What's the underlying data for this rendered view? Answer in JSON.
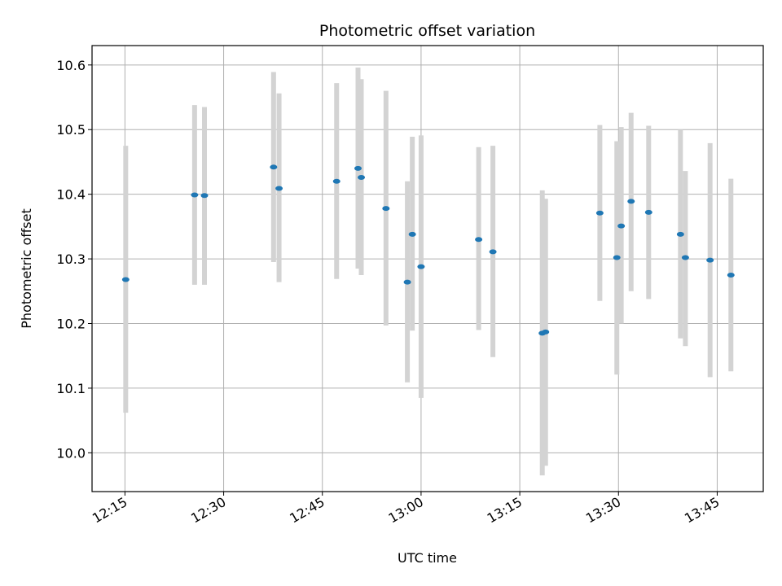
{
  "chart_data": {
    "type": "scatter",
    "title": "Photometric offset variation",
    "xlabel": "UTC time",
    "ylabel": "Photometric offset",
    "x_unit": "minutes",
    "x_range": [
      "12:10",
      "13:52"
    ],
    "ylim": [
      9.94,
      10.63
    ],
    "x_ticks": [
      "12:15",
      "12:30",
      "12:45",
      "13:00",
      "13:15",
      "13:30",
      "13:45"
    ],
    "y_ticks": [
      "10.0",
      "10.1",
      "10.2",
      "10.3",
      "10.4",
      "10.5",
      "10.6"
    ],
    "grid": true,
    "colors": {
      "point": "#1f77b4",
      "errorbar": "#d3d3d3",
      "grid": "#b0b0b0"
    },
    "points": [
      {
        "t": "12:15:07",
        "y": 10.268,
        "lo": 10.062,
        "hi": 10.475
      },
      {
        "t": "12:25:35",
        "y": 10.399,
        "lo": 10.26,
        "hi": 10.538
      },
      {
        "t": "12:27:05",
        "y": 10.398,
        "lo": 10.26,
        "hi": 10.535
      },
      {
        "t": "12:37:35",
        "y": 10.442,
        "lo": 10.295,
        "hi": 10.589
      },
      {
        "t": "12:38:25",
        "y": 10.409,
        "lo": 10.264,
        "hi": 10.556
      },
      {
        "t": "12:47:10",
        "y": 10.42,
        "lo": 10.269,
        "hi": 10.572
      },
      {
        "t": "12:50:25",
        "y": 10.44,
        "lo": 10.285,
        "hi": 10.596
      },
      {
        "t": "12:50:55",
        "y": 10.426,
        "lo": 10.275,
        "hi": 10.578
      },
      {
        "t": "12:54:40",
        "y": 10.378,
        "lo": 10.197,
        "hi": 10.56
      },
      {
        "t": "12:57:55",
        "y": 10.264,
        "lo": 10.109,
        "hi": 10.42
      },
      {
        "t": "12:58:40",
        "y": 10.338,
        "lo": 10.189,
        "hi": 10.489
      },
      {
        "t": "13:00:00",
        "y": 10.288,
        "lo": 10.085,
        "hi": 10.491
      },
      {
        "t": "13:08:45",
        "y": 10.33,
        "lo": 10.19,
        "hi": 10.473
      },
      {
        "t": "13:10:55",
        "y": 10.311,
        "lo": 10.148,
        "hi": 10.475
      },
      {
        "t": "13:18:25",
        "y": 10.185,
        "lo": 9.965,
        "hi": 10.406
      },
      {
        "t": "13:18:55",
        "y": 10.187,
        "lo": 9.98,
        "hi": 10.393
      },
      {
        "t": "13:27:10",
        "y": 10.371,
        "lo": 10.235,
        "hi": 10.507
      },
      {
        "t": "13:29:45",
        "y": 10.302,
        "lo": 10.121,
        "hi": 10.482
      },
      {
        "t": "13:30:25",
        "y": 10.351,
        "lo": 10.2,
        "hi": 10.504
      },
      {
        "t": "13:31:55",
        "y": 10.389,
        "lo": 10.25,
        "hi": 10.526
      },
      {
        "t": "13:34:35",
        "y": 10.372,
        "lo": 10.238,
        "hi": 10.506
      },
      {
        "t": "13:39:25",
        "y": 10.338,
        "lo": 10.177,
        "hi": 10.5
      },
      {
        "t": "13:40:10",
        "y": 10.302,
        "lo": 10.165,
        "hi": 10.436
      },
      {
        "t": "13:43:55",
        "y": 10.298,
        "lo": 10.117,
        "hi": 10.479
      },
      {
        "t": "13:47:05",
        "y": 10.275,
        "lo": 10.126,
        "hi": 10.424
      }
    ]
  }
}
